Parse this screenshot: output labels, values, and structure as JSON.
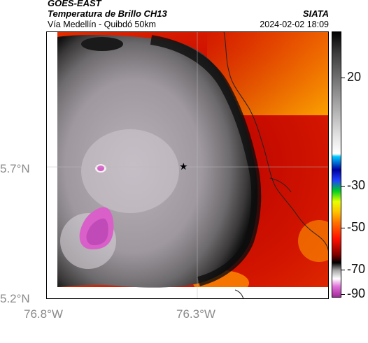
{
  "header": {
    "satellite": "GOES-EAST",
    "product": "Temperatura de Brillo CH13",
    "region": "Vía Medellín - Quibdó 50km",
    "organization": "SIATA",
    "datetime": "2024-02-02 18:09"
  },
  "map": {
    "lat_labels": [
      "5.7°N",
      "5.2°N"
    ],
    "lon_labels": [
      "76.8°W",
      "76.3°W"
    ],
    "marker": "star-icon"
  },
  "colorbar": {
    "ticks": [
      "20",
      "-30",
      "-50",
      "-70",
      "-90"
    ],
    "unit_range": [
      -95,
      35
    ]
  }
}
